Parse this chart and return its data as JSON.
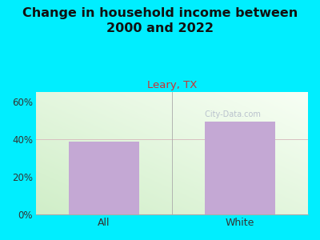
{
  "title": "Change in household income between\n2000 and 2022",
  "subtitle": "Leary, TX",
  "categories": [
    "All",
    "White"
  ],
  "values": [
    38.5,
    49.5
  ],
  "bar_color": "#c4a8d4",
  "title_fontsize": 11.5,
  "subtitle_fontsize": 9.5,
  "subtitle_color": "#cc3333",
  "title_color": "#111111",
  "background_color": "#00eeff",
  "ylim": [
    0,
    65
  ],
  "yticks": [
    0,
    20,
    40,
    60
  ],
  "ytick_labels": [
    "0%",
    "20%",
    "40%",
    "60%"
  ],
  "watermark": " City-Data.com",
  "watermark_color": "#b0b8c8",
  "hline_color": "#d8c0c0",
  "hline_linewidth": 0.7,
  "vline_color": "#aaaaaa",
  "vline_linewidth": 0.6,
  "bottom_line_color": "#aaaaaa"
}
